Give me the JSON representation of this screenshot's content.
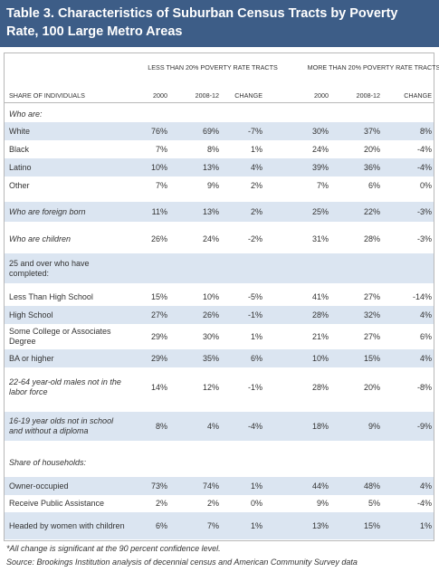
{
  "header": {
    "title": "Table 3. Characteristics of Suburban Census Tracts by Poverty Rate, 100 Large Metro Areas"
  },
  "table": {
    "group_headers": [
      "LESS THAN 20% POVERTY RATE TRACTS",
      "MORE THAN 20% POVERTY RATE TRACTS"
    ],
    "columns": [
      "SHARE OF INDIVIDUALS",
      "2000",
      "2008-12",
      "CHANGE",
      "2000",
      "2008-12",
      "CHANGE"
    ],
    "rows": [
      [
        "Who are:"
      ],
      [
        "White",
        "76%",
        "69%",
        "-7%",
        "30%",
        "37%",
        "8%"
      ],
      [
        "Black",
        "7%",
        "8%",
        "1%",
        "24%",
        "20%",
        "-4%"
      ],
      [
        "Latino",
        "10%",
        "13%",
        "4%",
        "39%",
        "36%",
        "-4%"
      ],
      [
        "Other",
        "7%",
        "9%",
        "2%",
        "7%",
        "6%",
        "0%"
      ],
      [
        "Who are foreign born",
        "11%",
        "13%",
        "2%",
        "25%",
        "22%",
        "-3%"
      ],
      [
        "Who are children",
        "26%",
        "24%",
        "-2%",
        "31%",
        "28%",
        "-3%"
      ],
      [
        "25 and over who have completed:"
      ],
      [
        "Less Than High School",
        "15%",
        "10%",
        "-5%",
        "41%",
        "27%",
        "-14%"
      ],
      [
        "High School",
        "27%",
        "26%",
        "-1%",
        "28%",
        "32%",
        "4%"
      ],
      [
        "Some College or Associates Degree",
        "29%",
        "30%",
        "1%",
        "21%",
        "27%",
        "6%"
      ],
      [
        "BA or higher",
        "29%",
        "35%",
        "6%",
        "10%",
        "15%",
        "4%"
      ],
      [
        "22-64 year-old males not in the labor force",
        "14%",
        "12%",
        "-1%",
        "28%",
        "20%",
        "-8%"
      ],
      [
        "16-19 year olds not in school and without a diploma",
        "8%",
        "4%",
        "-4%",
        "18%",
        "9%",
        "-9%"
      ],
      [
        "Share of households:"
      ],
      [
        "Owner-occupied",
        "73%",
        "74%",
        "1%",
        "44%",
        "48%",
        "4%"
      ],
      [
        "Receive Public Assistance",
        "2%",
        "2%",
        "0%",
        "9%",
        "5%",
        "-4%"
      ],
      [
        "Headed by women with children",
        "6%",
        "7%",
        "1%",
        "13%",
        "15%",
        "1%"
      ]
    ]
  },
  "footnotes": [
    "*All change is significant at the 90 percent confidence level.",
    "Source: Brookings Institution analysis of decennial census and American Community Survey data"
  ]
}
